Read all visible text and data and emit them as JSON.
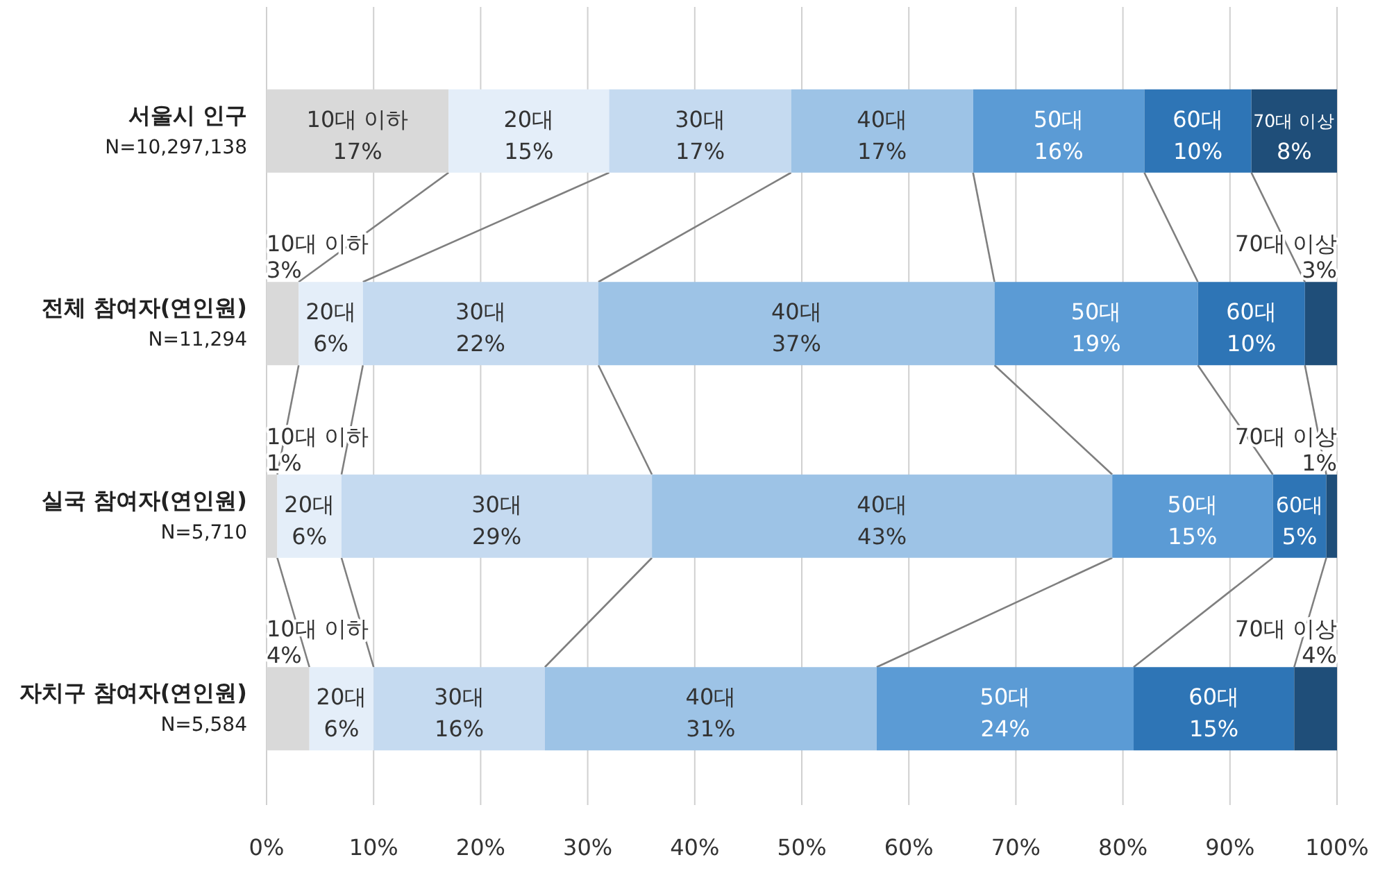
{
  "chart_data": {
    "type": "bar",
    "orientation": "horizontal",
    "stacked": true,
    "grid": "x",
    "categories": [
      "서울시 인구\nN=10,297,138",
      "전체 참여자(연인원)\nN=11,294",
      "실국 참여자(연인원)\nN=5,710",
      "자치구 참여자(연인원)\nN=5,584"
    ],
    "xlim": [
      0,
      100
    ],
    "xticks": [
      {
        "value": 0,
        "label": "0%"
      },
      {
        "value": 10,
        "label": "10%"
      },
      {
        "value": 20,
        "label": "20%"
      },
      {
        "value": 30,
        "label": "30%"
      },
      {
        "value": 40,
        "label": "40%"
      },
      {
        "value": 50,
        "label": "50%"
      },
      {
        "value": 60,
        "label": "60%"
      },
      {
        "value": 70,
        "label": "70%"
      },
      {
        "value": 80,
        "label": "80%"
      },
      {
        "value": 90,
        "label": "90%"
      },
      {
        "value": 100,
        "label": "100%"
      }
    ],
    "series": [
      {
        "name": "10대 이하",
        "color": "#d9d9d9",
        "values": [
          17,
          3,
          1,
          4
        ],
        "value_labels": [
          "17%",
          "3%",
          "1%",
          "4%"
        ]
      },
      {
        "name": "20대",
        "color": "#e4eef9",
        "values": [
          15,
          6,
          6,
          6
        ],
        "value_labels": [
          "15%",
          "6%",
          "6%",
          "6%"
        ]
      },
      {
        "name": "30대",
        "color": "#c5daf0",
        "values": [
          17,
          22,
          29,
          16
        ],
        "value_labels": [
          "17%",
          "22%",
          "29%",
          "16%"
        ]
      },
      {
        "name": "40대",
        "color": "#9dc3e6",
        "values": [
          17,
          37,
          43,
          31
        ],
        "value_labels": [
          "17%",
          "37%",
          "43%",
          "31%"
        ]
      },
      {
        "name": "50대",
        "color": "#5b9bd5",
        "values": [
          16,
          19,
          15,
          24
        ],
        "value_labels": [
          "16%",
          "19%",
          "15%",
          "24%"
        ]
      },
      {
        "name": "60대",
        "color": "#2e75b6",
        "values": [
          10,
          10,
          5,
          15
        ],
        "value_labels": [
          "10%",
          "10%",
          "5%",
          "15%"
        ]
      },
      {
        "name": "70대 이상",
        "color": "#1f4e79",
        "values": [
          8,
          3,
          1,
          4
        ],
        "value_labels": [
          "8%",
          "3%",
          "1%",
          "4%"
        ]
      }
    ]
  }
}
